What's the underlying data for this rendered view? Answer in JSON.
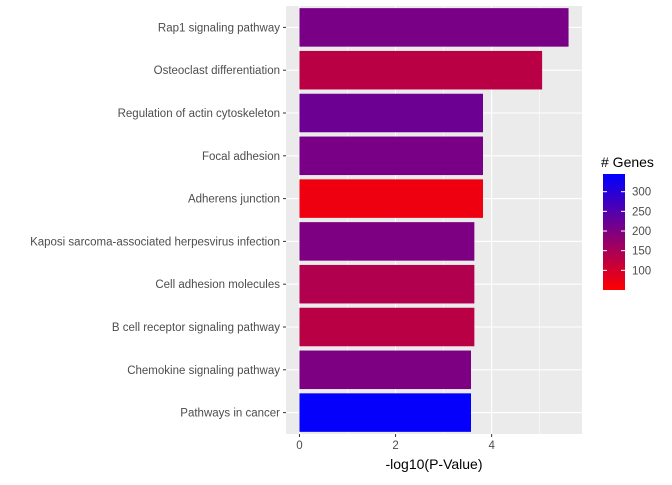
{
  "chart_data": {
    "type": "bar",
    "orientation": "horizontal",
    "categories": [
      "Rap1 signaling pathway",
      "Osteoclast differentiation",
      "Regulation of actin cytoskeleton",
      "Focal adhesion",
      "Adherens junction",
      "Kaposi sarcoma-associated herpesvirus infection",
      "Cell adhesion molecules",
      "B cell receptor signaling pathway",
      "Chemokine signaling pathway",
      "Pathways in cancer"
    ],
    "values": [
      5.6,
      5.05,
      3.82,
      3.82,
      3.82,
      3.64,
      3.64,
      3.64,
      3.57,
      3.57
    ],
    "genes": [
      205,
      130,
      220,
      205,
      70,
      200,
      140,
      130,
      200,
      340
    ],
    "xlabel": "-log10(P-Value)",
    "ylabel": "",
    "xlim": [
      -0.28,
      5.88
    ],
    "xticks": [
      0,
      2,
      4
    ],
    "grid": true,
    "legend": {
      "title": "# Genes",
      "ticks": [
        100,
        150,
        200,
        250,
        300
      ],
      "range": [
        50,
        345
      ],
      "low_color": "#ff0000",
      "high_color": "#0000ff",
      "placement": "right"
    },
    "panel_background": "#ebebeb",
    "grid_color": "#ffffff"
  }
}
